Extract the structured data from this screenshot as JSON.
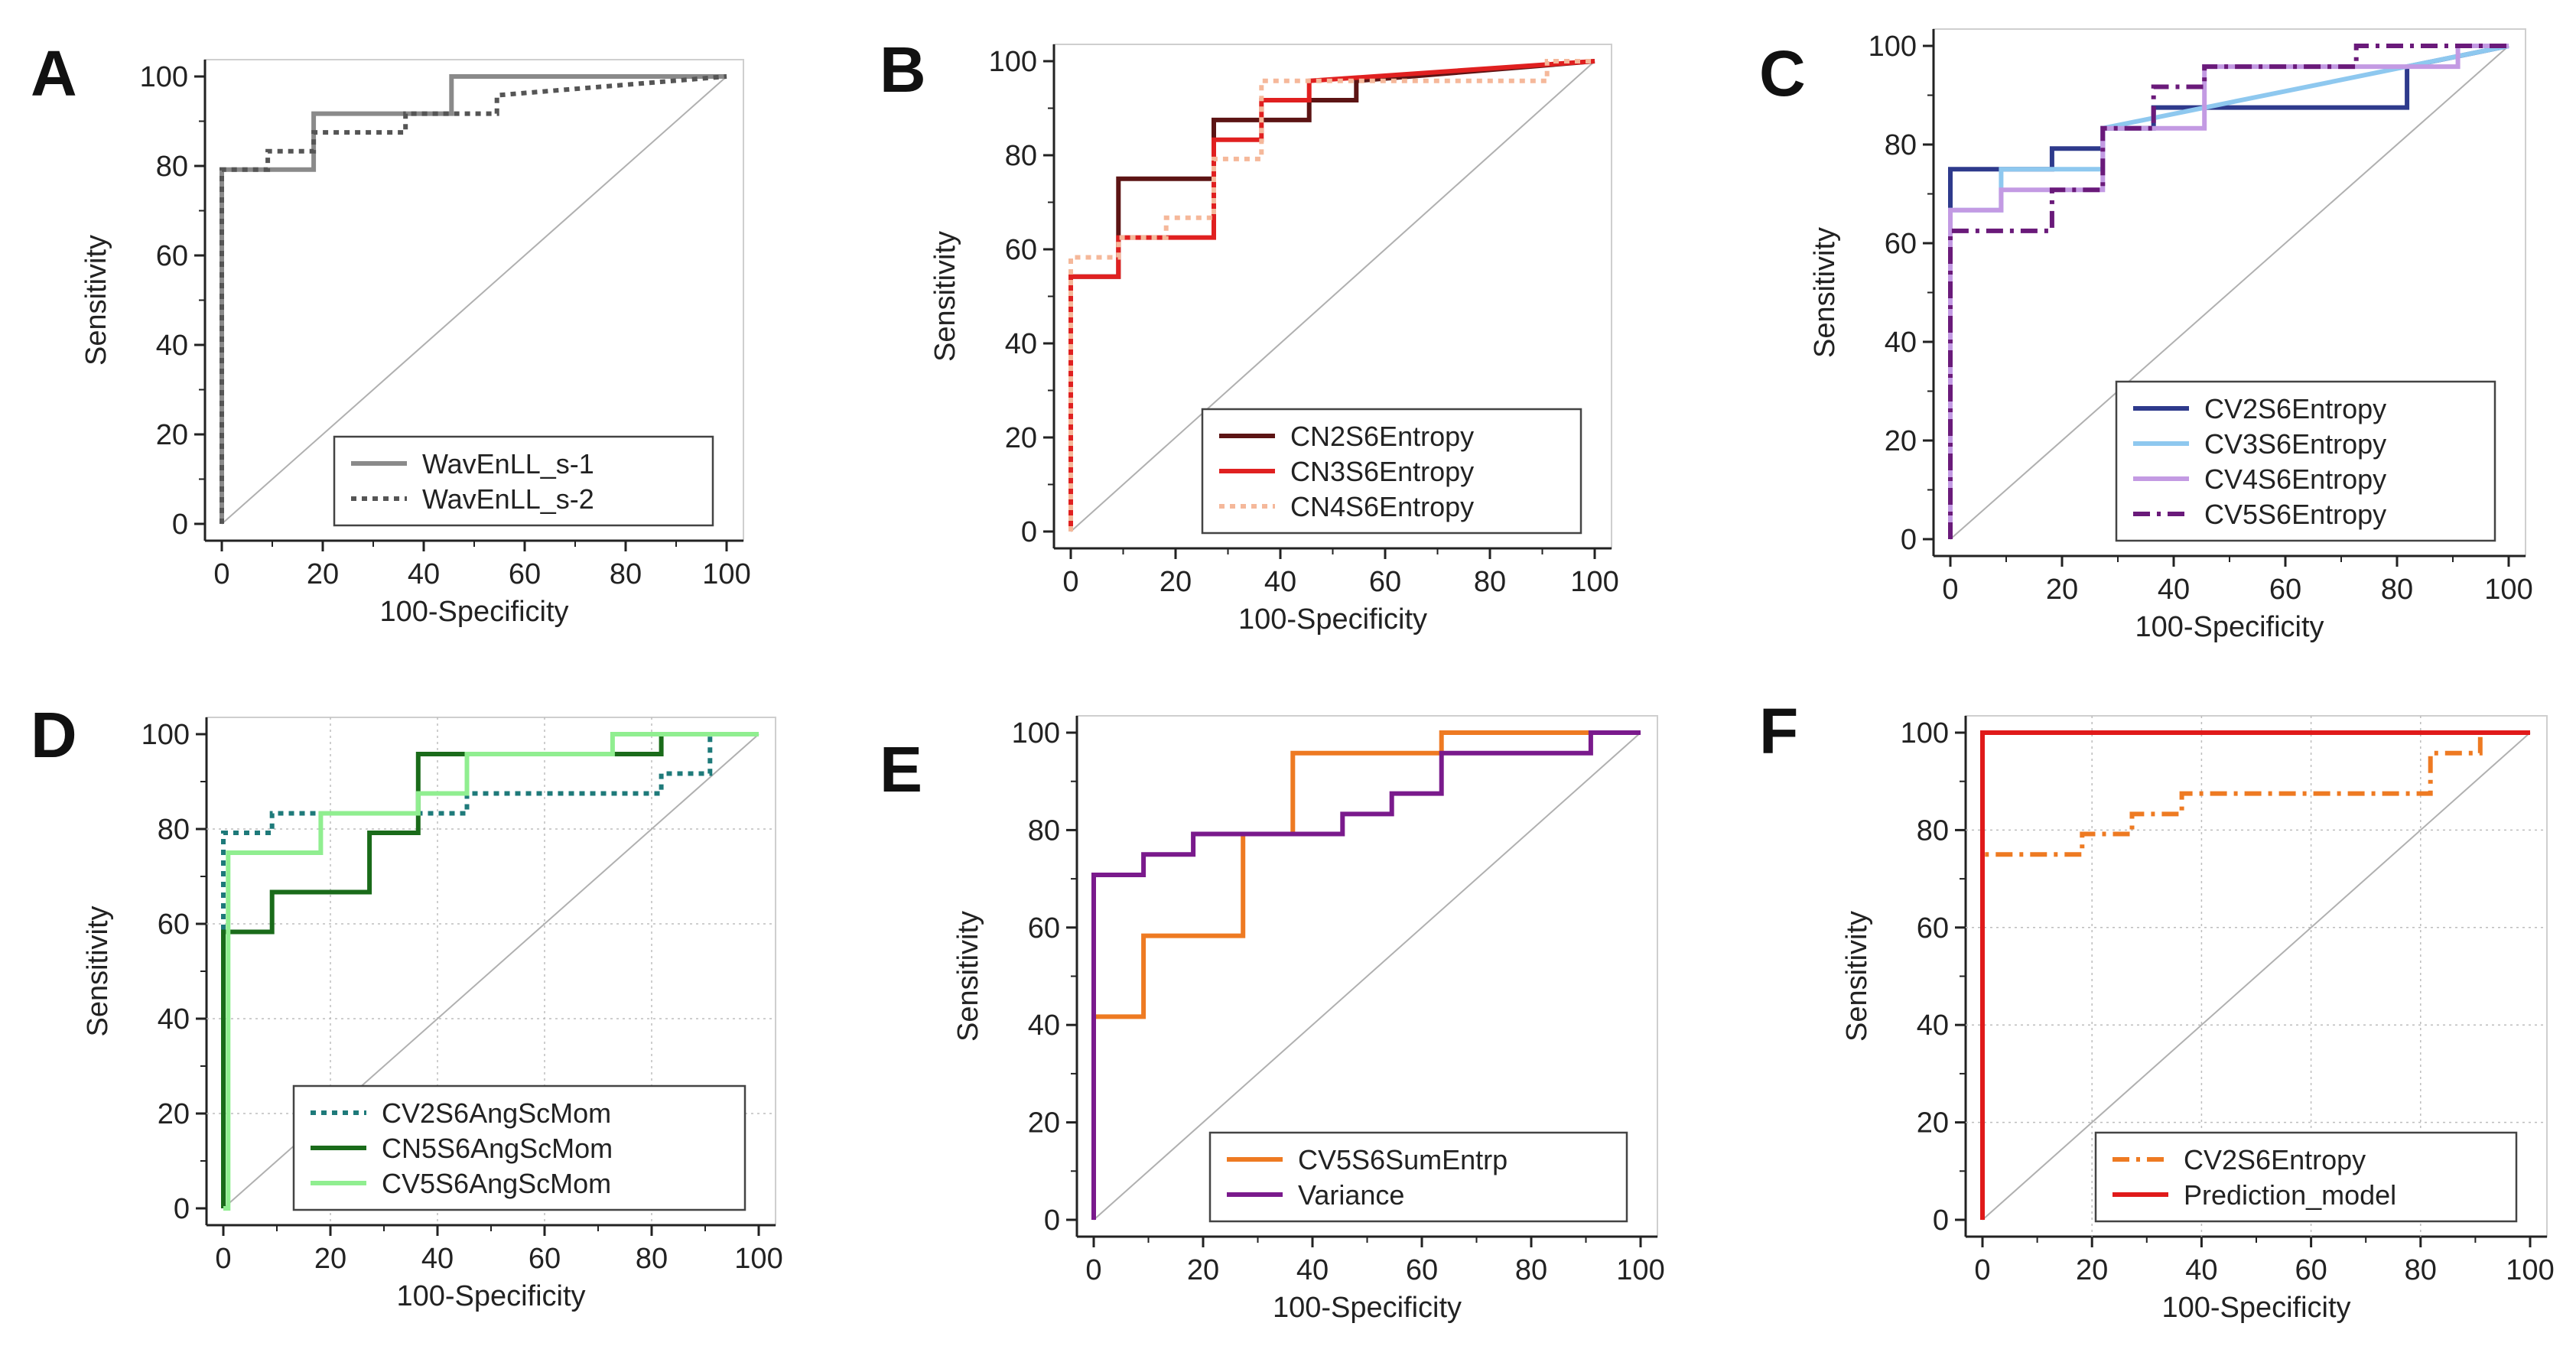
{
  "chart_data": [
    {
      "panel": "A",
      "type": "line",
      "xlabel": "100-Specificity",
      "ylabel": "Sensitivity",
      "xlim": [
        0,
        100
      ],
      "ylim": [
        0,
        100
      ],
      "xticks": [
        "0",
        "20",
        "40",
        "60",
        "80",
        "100"
      ],
      "yticks": [
        "0",
        "20",
        "40",
        "60",
        "80",
        "100"
      ],
      "grid": false,
      "legend_position": "bottom-right",
      "series": [
        {
          "name": "WavEnLL_s-1",
          "color": "#8a8a8a",
          "dash": "solid",
          "x": [
            0,
            0,
            18.2,
            18.2,
            45.5,
            45.5,
            100
          ],
          "y": [
            0,
            79.2,
            79.2,
            91.7,
            91.7,
            100,
            100
          ]
        },
        {
          "name": "WavEnLL_s-2",
          "color": "#555555",
          "dash": "dot",
          "x": [
            0,
            0,
            9.1,
            9.1,
            18.2,
            18.2,
            36.4,
            36.4,
            54.5,
            54.5,
            100
          ],
          "y": [
            0,
            79.2,
            79.2,
            83.3,
            83.3,
            87.5,
            87.5,
            91.7,
            91.7,
            95.8,
            100
          ]
        }
      ]
    },
    {
      "panel": "B",
      "type": "line",
      "xlabel": "100-Specificity",
      "ylabel": "Sensitivity",
      "xlim": [
        0,
        100
      ],
      "ylim": [
        0,
        100
      ],
      "xticks": [
        "0",
        "20",
        "40",
        "60",
        "80",
        "100"
      ],
      "yticks": [
        "0",
        "20",
        "40",
        "60",
        "80",
        "100"
      ],
      "grid": false,
      "legend_position": "bottom-right",
      "series": [
        {
          "name": "CN2S6Entropy",
          "color": "#5c1414",
          "dash": "solid",
          "x": [
            0,
            0,
            9.1,
            9.1,
            27.3,
            27.3,
            45.5,
            45.5,
            54.5,
            54.5,
            100
          ],
          "y": [
            0,
            54.2,
            54.2,
            75,
            75,
            87.5,
            87.5,
            91.7,
            91.7,
            95.8,
            100
          ]
        },
        {
          "name": "CN3S6Entropy",
          "color": "#e02020",
          "dash": "solid",
          "x": [
            0,
            0,
            9.1,
            9.1,
            27.3,
            27.3,
            36.4,
            36.4,
            45.5,
            45.5,
            100
          ],
          "y": [
            0,
            54.2,
            54.2,
            62.5,
            62.5,
            83.3,
            83.3,
            91.7,
            91.7,
            95.8,
            100
          ]
        },
        {
          "name": "CN4S6Entropy",
          "color": "#f5b89a",
          "dash": "dot",
          "x": [
            0,
            0,
            9.1,
            9.1,
            18.2,
            18.2,
            27.3,
            27.3,
            36.4,
            36.4,
            90.9,
            90.9,
            100
          ],
          "y": [
            0,
            58.3,
            58.3,
            62.5,
            62.5,
            66.7,
            66.7,
            79.2,
            79.2,
            95.8,
            95.8,
            100,
            100
          ]
        }
      ]
    },
    {
      "panel": "C",
      "type": "line",
      "xlabel": "100-Specificity",
      "ylabel": "Sensitivity",
      "xlim": [
        0,
        100
      ],
      "ylim": [
        0,
        100
      ],
      "xticks": [
        "0",
        "20",
        "40",
        "60",
        "80",
        "100"
      ],
      "yticks": [
        "0",
        "20",
        "40",
        "60",
        "80",
        "100"
      ],
      "grid": false,
      "legend_position": "bottom-right",
      "series": [
        {
          "name": "CV2S6Entropy",
          "color": "#2e3a8c",
          "dash": "solid",
          "x": [
            0,
            0,
            18.2,
            18.2,
            27.3,
            27.3,
            36.4,
            36.4,
            81.8,
            81.8,
            100
          ],
          "y": [
            0,
            75,
            75,
            79.2,
            79.2,
            83.3,
            83.3,
            87.5,
            87.5,
            95.8,
            100
          ]
        },
        {
          "name": "CV3S6Entropy",
          "color": "#8ec8ef",
          "dash": "solid",
          "x": [
            0,
            0,
            9.1,
            9.1,
            27.3,
            27.3,
            100
          ],
          "y": [
            0,
            66.7,
            66.7,
            75,
            75,
            83.3,
            100
          ]
        },
        {
          "name": "CV4S6Entropy",
          "color": "#c39ae3",
          "dash": "solid",
          "x": [
            0,
            0,
            9.1,
            9.1,
            27.3,
            27.3,
            45.5,
            45.5,
            90.9,
            90.9,
            100
          ],
          "y": [
            0,
            66.7,
            66.7,
            70.8,
            70.8,
            83.3,
            83.3,
            95.8,
            95.8,
            100,
            100
          ]
        },
        {
          "name": "CV5S6Entropy",
          "color": "#6a1a7a",
          "dash": "dashdot",
          "x": [
            0,
            0,
            18.2,
            18.2,
            27.3,
            27.3,
            36.4,
            36.4,
            45.5,
            45.5,
            72.7,
            72.7,
            100
          ],
          "y": [
            0,
            62.5,
            62.5,
            70.8,
            70.8,
            83.3,
            83.3,
            91.7,
            91.7,
            95.8,
            95.8,
            100,
            100
          ]
        }
      ]
    },
    {
      "panel": "D",
      "type": "line",
      "xlabel": "100-Specificity",
      "ylabel": "Sensitivity",
      "xlim": [
        0,
        100
      ],
      "ylim": [
        0,
        100
      ],
      "xticks": [
        "0",
        "20",
        "40",
        "60",
        "80",
        "100"
      ],
      "yticks": [
        "0",
        "20",
        "40",
        "60",
        "80",
        "100"
      ],
      "grid": true,
      "legend_position": "bottom-right",
      "series": [
        {
          "name": "CV2S6AngScMom",
          "color": "#1e7a7a",
          "dash": "dot",
          "x": [
            0,
            0,
            9.1,
            9.1,
            45.5,
            45.5,
            81.8,
            81.8,
            90.9,
            90.9,
            100
          ],
          "y": [
            0,
            79.2,
            79.2,
            83.3,
            83.3,
            87.5,
            87.5,
            91.7,
            91.7,
            100,
            100
          ]
        },
        {
          "name": "CN5S6AngScMom",
          "color": "#1a6b1a",
          "dash": "solid",
          "x": [
            0,
            0,
            9.1,
            9.1,
            27.3,
            27.3,
            36.4,
            36.4,
            81.8,
            81.8,
            100
          ],
          "y": [
            0,
            58.3,
            58.3,
            66.7,
            66.7,
            79.2,
            79.2,
            95.8,
            95.8,
            100,
            100
          ]
        },
        {
          "name": "CV5S6AngScMom",
          "color": "#90ee90",
          "dash": "solid",
          "x": [
            0,
            0.9,
            0.9,
            18.2,
            18.2,
            36.4,
            36.4,
            45.5,
            45.5,
            72.7,
            72.7,
            100
          ],
          "y": [
            0,
            0,
            75,
            75,
            83.3,
            83.3,
            87.5,
            87.5,
            95.8,
            95.8,
            100,
            100
          ]
        }
      ]
    },
    {
      "panel": "E",
      "type": "line",
      "xlabel": "100-Specificity",
      "ylabel": "Sensitivity",
      "xlim": [
        0,
        100
      ],
      "ylim": [
        0,
        100
      ],
      "xticks": [
        "0",
        "20",
        "40",
        "60",
        "80",
        "100"
      ],
      "yticks": [
        "0",
        "20",
        "40",
        "60",
        "80",
        "100"
      ],
      "grid": false,
      "legend_position": "bottom-right",
      "series": [
        {
          "name": "CV5S6SumEntrp",
          "color": "#ee7a22",
          "dash": "solid",
          "x": [
            0,
            0,
            9.1,
            9.1,
            27.3,
            27.3,
            36.4,
            36.4,
            63.6,
            63.6,
            100
          ],
          "y": [
            0,
            41.7,
            41.7,
            58.3,
            58.3,
            79.2,
            79.2,
            95.8,
            95.8,
            100,
            100
          ]
        },
        {
          "name": "Variance",
          "color": "#7a1a8c",
          "dash": "solid",
          "x": [
            0,
            0,
            9.1,
            9.1,
            18.2,
            18.2,
            45.5,
            45.5,
            54.5,
            54.5,
            63.6,
            63.6,
            90.9,
            90.9,
            100
          ],
          "y": [
            0,
            70.8,
            70.8,
            75,
            75,
            79.2,
            79.2,
            83.3,
            83.3,
            87.5,
            87.5,
            95.8,
            95.8,
            100,
            100
          ]
        }
      ]
    },
    {
      "panel": "F",
      "type": "line",
      "xlabel": "100-Specificity",
      "ylabel": "Sensitivity",
      "xlim": [
        0,
        100
      ],
      "ylim": [
        0,
        100
      ],
      "xticks": [
        "0",
        "20",
        "40",
        "60",
        "80",
        "100"
      ],
      "yticks": [
        "0",
        "20",
        "40",
        "60",
        "80",
        "100"
      ],
      "grid": true,
      "legend_position": "bottom-right",
      "series": [
        {
          "name": "CV2S6Entropy",
          "color": "#ee7a22",
          "dash": "dashdot",
          "x": [
            0,
            0,
            18.2,
            18.2,
            27.3,
            27.3,
            36.4,
            36.4,
            81.8,
            81.8,
            90.9,
            90.9
          ],
          "y": [
            0,
            75,
            75,
            79.2,
            79.2,
            83.3,
            83.3,
            87.5,
            87.5,
            95.8,
            95.8,
            100
          ]
        },
        {
          "name": "Prediction_model",
          "color": "#e01a1a",
          "dash": "solid",
          "x": [
            0,
            0,
            100
          ],
          "y": [
            0,
            100,
            100
          ]
        }
      ]
    }
  ]
}
